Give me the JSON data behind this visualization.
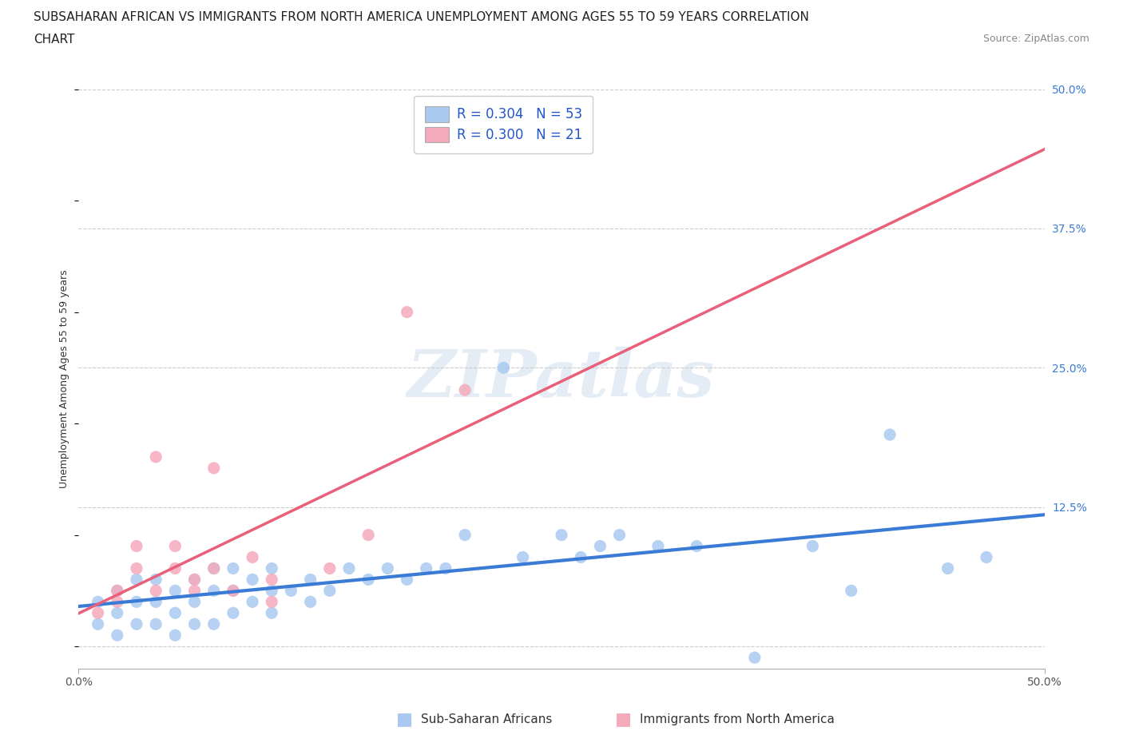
{
  "title_line1": "SUBSAHARAN AFRICAN VS IMMIGRANTS FROM NORTH AMERICA UNEMPLOYMENT AMONG AGES 55 TO 59 YEARS CORRELATION",
  "title_line2": "CHART",
  "source_text": "Source: ZipAtlas.com",
  "ylabel": "Unemployment Among Ages 55 to 59 years",
  "watermark": "ZIPatlas",
  "blue_label": "Sub-Saharan Africans",
  "pink_label": "Immigrants from North America",
  "blue_R": "0.304",
  "blue_N": "53",
  "pink_R": "0.300",
  "pink_N": "21",
  "blue_color": "#aac9f0",
  "pink_color": "#f5aabb",
  "blue_line_color": "#3a7bd5",
  "pink_line_color": "#e8607a",
  "blue_dash_color": "#f0b0bc",
  "xmin": 0.0,
  "xmax": 0.5,
  "ymin": -0.02,
  "ymax": 0.5,
  "y_ticks_right": [
    0.0,
    0.125,
    0.25,
    0.375,
    0.5
  ],
  "y_tick_labels_right": [
    "",
    "12.5%",
    "25.0%",
    "37.5%",
    "50.0%"
  ],
  "blue_scatter_x": [
    0.01,
    0.01,
    0.02,
    0.02,
    0.02,
    0.03,
    0.03,
    0.03,
    0.04,
    0.04,
    0.04,
    0.05,
    0.05,
    0.05,
    0.06,
    0.06,
    0.06,
    0.07,
    0.07,
    0.07,
    0.08,
    0.08,
    0.08,
    0.09,
    0.09,
    0.1,
    0.1,
    0.1,
    0.11,
    0.12,
    0.12,
    0.13,
    0.14,
    0.15,
    0.16,
    0.17,
    0.18,
    0.19,
    0.2,
    0.22,
    0.23,
    0.25,
    0.26,
    0.27,
    0.28,
    0.3,
    0.32,
    0.35,
    0.38,
    0.4,
    0.42,
    0.45,
    0.47
  ],
  "blue_scatter_y": [
    0.02,
    0.04,
    0.01,
    0.03,
    0.05,
    0.02,
    0.04,
    0.06,
    0.02,
    0.04,
    0.06,
    0.01,
    0.03,
    0.05,
    0.02,
    0.04,
    0.06,
    0.02,
    0.05,
    0.07,
    0.03,
    0.05,
    0.07,
    0.04,
    0.06,
    0.03,
    0.05,
    0.07,
    0.05,
    0.04,
    0.06,
    0.05,
    0.07,
    0.06,
    0.07,
    0.06,
    0.07,
    0.07,
    0.1,
    0.25,
    0.08,
    0.1,
    0.08,
    0.09,
    0.1,
    0.09,
    0.09,
    -0.01,
    0.09,
    0.05,
    0.19,
    0.07,
    0.08
  ],
  "pink_scatter_x": [
    0.01,
    0.02,
    0.02,
    0.03,
    0.03,
    0.04,
    0.04,
    0.05,
    0.05,
    0.06,
    0.06,
    0.07,
    0.07,
    0.08,
    0.09,
    0.1,
    0.1,
    0.13,
    0.15,
    0.17,
    0.2
  ],
  "pink_scatter_y": [
    0.03,
    0.04,
    0.05,
    0.07,
    0.09,
    0.05,
    0.17,
    0.07,
    0.09,
    0.06,
    0.05,
    0.07,
    0.16,
    0.05,
    0.08,
    0.04,
    0.06,
    0.07,
    0.1,
    0.3,
    0.23
  ],
  "grid_color": "#cccccc",
  "background_color": "#ffffff",
  "title_fontsize": 11,
  "axis_label_fontsize": 9,
  "tick_fontsize": 10,
  "legend_fontsize": 12,
  "watermark_fontsize": 60,
  "watermark_color": "#c5d8ea",
  "watermark_alpha": 0.45
}
